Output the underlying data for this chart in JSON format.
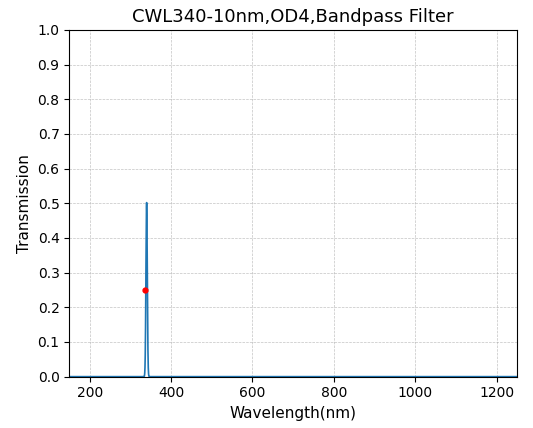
{
  "title": "CWL340-10nm,OD4,Bandpass Filter",
  "xlabel": "Wavelength(nm)",
  "ylabel": "Transmission",
  "xlim": [
    150,
    1250
  ],
  "ylim": [
    0.0,
    1.0
  ],
  "xticks": [
    200,
    400,
    600,
    800,
    1000,
    1200
  ],
  "yticks": [
    0.0,
    0.1,
    0.2,
    0.3,
    0.4,
    0.5,
    0.6,
    0.7,
    0.8,
    0.9,
    1.0
  ],
  "cwl": 340,
  "fwhm": 10,
  "peak_transmission": 0.502,
  "half_transmission": 0.251,
  "marker_wl": 335,
  "line_color": "#1f77b4",
  "marker_color": "red",
  "background_color": "#ffffff",
  "grid_color": "#888888",
  "title_fontsize": 13,
  "label_fontsize": 11,
  "tick_fontsize": 10
}
